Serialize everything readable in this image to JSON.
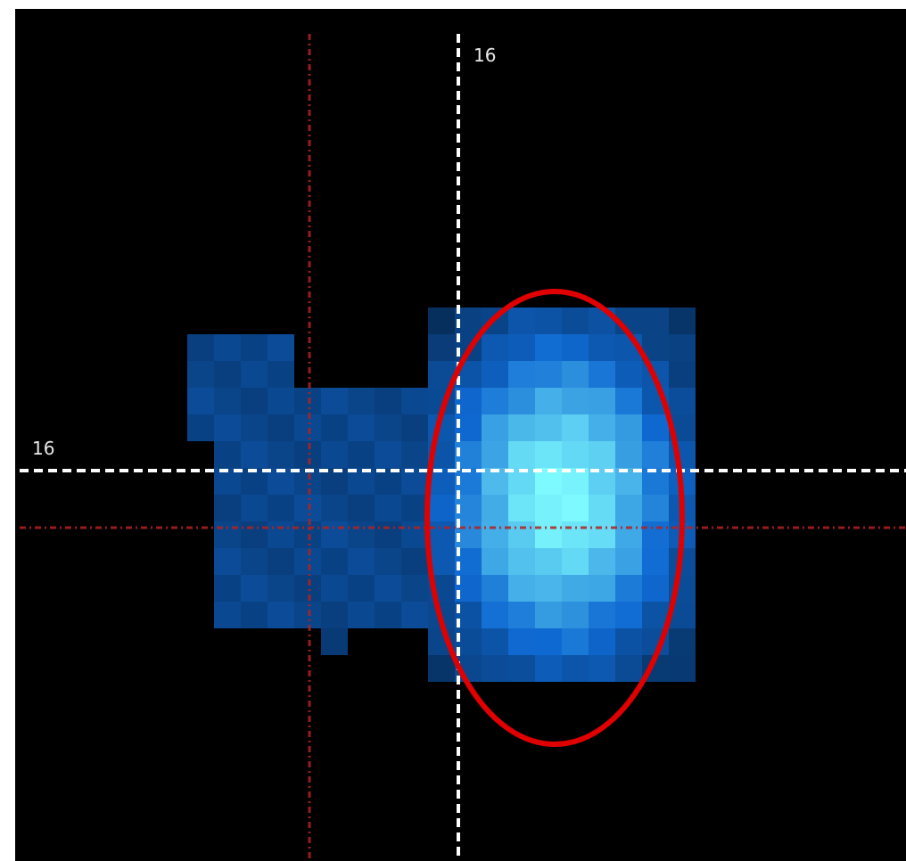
{
  "image": {
    "description_kind": "pixelated blue astronomical image with crosshair overlay",
    "colors": {
      "background": "#000000",
      "blob_dim": "#0b3561",
      "blob_bright": "#1aa3ff",
      "blob_core": "#7ff7ff",
      "dashed_crosshair": "#ffffff",
      "dotted_crosshair": "#b22222",
      "highlight_ellipse": "#e00000"
    }
  },
  "crosshair": {
    "vertical_label": "16",
    "horizontal_label": "16"
  }
}
